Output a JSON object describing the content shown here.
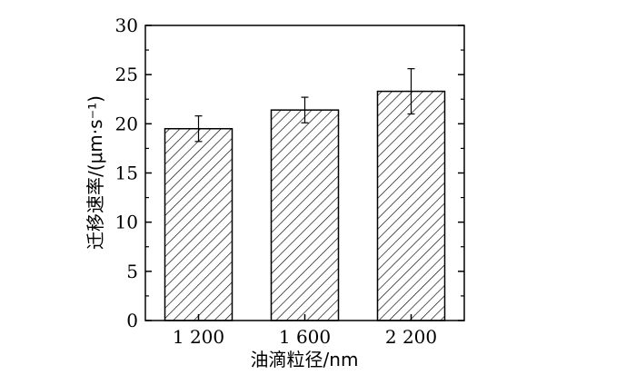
{
  "chart_data": {
    "type": "bar",
    "categories": [
      "1 200",
      "1 600",
      "2 200"
    ],
    "values": [
      19.5,
      21.4,
      23.3
    ],
    "errors": [
      1.3,
      1.3,
      2.3
    ],
    "xlabel": "油滴粒径/nm",
    "ylabel": "迁移速率/(μm·s⁻¹)",
    "ylim": [
      0,
      30
    ],
    "yticks": [
      0,
      5,
      10,
      15,
      20,
      25,
      30
    ],
    "grid": false,
    "bar_fill": "hatched",
    "colors": {
      "stroke": "#000000",
      "background": "#ffffff"
    }
  }
}
